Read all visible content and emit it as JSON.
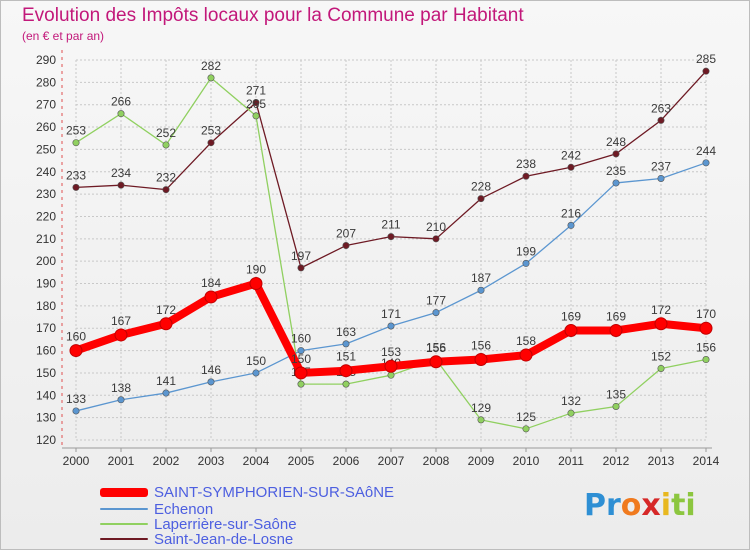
{
  "chart_data": {
    "type": "line",
    "title": "Evolution des Impôts locaux pour la Commune par Habitant",
    "subtitle": "(en € et par an)",
    "x": [
      2000,
      2001,
      2002,
      2003,
      2004,
      2005,
      2006,
      2007,
      2008,
      2009,
      2010,
      2011,
      2012,
      2013,
      2014
    ],
    "ylim": [
      120,
      290
    ],
    "yticks": [
      120,
      130,
      140,
      150,
      160,
      170,
      180,
      190,
      200,
      210,
      220,
      230,
      240,
      250,
      260,
      270,
      280,
      290
    ],
    "grid": true,
    "series": [
      {
        "name": "Saint-Jean-de-Losne",
        "color": "#6e1a24",
        "values": [
          233,
          234,
          232,
          253,
          271,
          197,
          207,
          211,
          210,
          228,
          238,
          242,
          248,
          263,
          285
        ]
      },
      {
        "name": "Laperrière-sur-Saône",
        "color": "#90d060",
        "values": [
          253,
          266,
          252,
          282,
          265,
          145,
          145,
          149,
          156,
          129,
          125,
          132,
          135,
          152,
          156
        ]
      },
      {
        "name": "Échenon",
        "color": "#5b96d0",
        "values": [
          133,
          138,
          141,
          146,
          150,
          160,
          163,
          171,
          177,
          187,
          199,
          216,
          235,
          237,
          244
        ]
      },
      {
        "name": "SAINT-SYMPHORIEN-SUR-SAôNE",
        "color": "#ff0000",
        "values": [
          160,
          167,
          172,
          184,
          190,
          150,
          151,
          153,
          155,
          156,
          158,
          169,
          169,
          172,
          170
        ]
      }
    ]
  },
  "legend": [
    {
      "label": "SAINT-SYMPHORIEN-SUR-SAôNE",
      "color": "#ff0000"
    },
    {
      "label": "Echenon",
      "color": "#5b96d0"
    },
    {
      "label": "Laperrière-sur-Saône",
      "color": "#90d060"
    },
    {
      "label": "Saint-Jean-de-Losne",
      "color": "#6e1a24"
    }
  ],
  "logo": {
    "parts": [
      "Pr",
      "o",
      "x",
      "i",
      "ti"
    ],
    "colors": [
      "#2e8fd4",
      "#f07a1e",
      "#d62828",
      "#e8b820",
      "#8cc63f"
    ]
  }
}
